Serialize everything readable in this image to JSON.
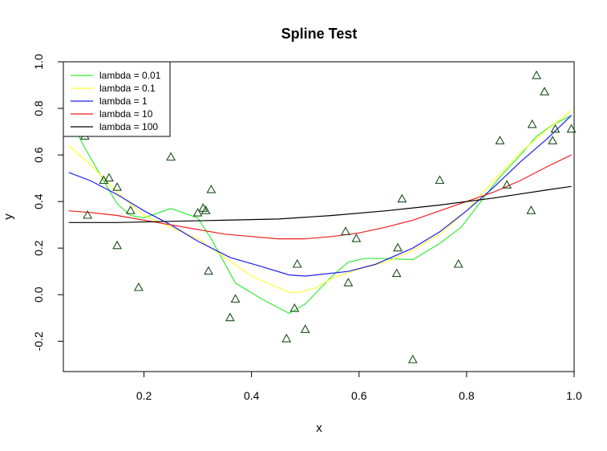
{
  "chart_data": {
    "type": "scatter",
    "title": "Spline Test",
    "xlabel": "x",
    "ylabel": "y",
    "xlim": [
      0.05,
      1.0
    ],
    "ylim": [
      -0.33,
      1.0
    ],
    "x_ticks": [
      0.2,
      0.4,
      0.6,
      0.8,
      1.0
    ],
    "x_tick_labels": [
      "0.2",
      "0.4",
      "0.6",
      "0.8",
      "1.0"
    ],
    "y_ticks": [
      -0.2,
      0.0,
      0.2,
      0.4,
      0.6,
      0.8,
      1.0
    ],
    "y_tick_labels": [
      "-0.2",
      "0.0",
      "0.2",
      "0.4",
      "0.6",
      "0.8",
      "1.0"
    ],
    "grid": false,
    "legend_position": "top-left",
    "points": {
      "marker": "triangle",
      "color": "#1a4d1a",
      "x": [
        0.09,
        0.095,
        0.11,
        0.125,
        0.135,
        0.15,
        0.15,
        0.175,
        0.19,
        0.25,
        0.3,
        0.31,
        0.315,
        0.32,
        0.325,
        0.36,
        0.37,
        0.465,
        0.48,
        0.485,
        0.5,
        0.575,
        0.58,
        0.595,
        0.67,
        0.672,
        0.68,
        0.7,
        0.75,
        0.785,
        0.862,
        0.875,
        0.92,
        0.922,
        0.93,
        0.945,
        0.96,
        0.965,
        0.995
      ],
      "y": [
        0.68,
        0.34,
        0.7,
        0.49,
        0.5,
        0.46,
        0.21,
        0.36,
        0.03,
        0.59,
        0.35,
        0.37,
        0.36,
        0.1,
        0.45,
        -0.1,
        -0.02,
        -0.19,
        -0.06,
        0.13,
        -0.15,
        0.27,
        0.05,
        0.24,
        0.09,
        0.2,
        0.41,
        -0.28,
        0.49,
        0.13,
        0.66,
        0.47,
        0.36,
        0.73,
        0.94,
        0.87,
        0.66,
        0.71,
        0.71
      ]
    },
    "series": [
      {
        "name": "lambda = 0.01",
        "color": "#33ee33",
        "x": [
          0.07,
          0.09,
          0.11,
          0.13,
          0.15,
          0.175,
          0.2,
          0.25,
          0.3,
          0.325,
          0.37,
          0.42,
          0.47,
          0.5,
          0.55,
          0.58,
          0.61,
          0.65,
          0.7,
          0.75,
          0.79,
          0.82,
          0.86,
          0.9,
          0.93,
          0.96,
          0.995
        ],
        "y": [
          0.72,
          0.63,
          0.55,
          0.47,
          0.39,
          0.34,
          0.33,
          0.37,
          0.33,
          0.24,
          0.05,
          -0.02,
          -0.08,
          -0.04,
          0.08,
          0.14,
          0.155,
          0.155,
          0.15,
          0.22,
          0.29,
          0.38,
          0.5,
          0.6,
          0.68,
          0.73,
          0.77
        ]
      },
      {
        "name": "lambda = 0.1",
        "color": "#ffff33",
        "x": [
          0.06,
          0.1,
          0.15,
          0.2,
          0.25,
          0.3,
          0.35,
          0.4,
          0.45,
          0.47,
          0.49,
          0.52,
          0.55,
          0.6,
          0.65,
          0.7,
          0.75,
          0.8,
          0.85,
          0.9,
          0.95,
          0.995
        ],
        "y": [
          0.64,
          0.56,
          0.44,
          0.34,
          0.29,
          0.24,
          0.16,
          0.08,
          0.03,
          0.01,
          0.01,
          0.03,
          0.07,
          0.11,
          0.14,
          0.19,
          0.26,
          0.36,
          0.49,
          0.61,
          0.71,
          0.79
        ]
      },
      {
        "name": "lambda = 1",
        "color": "#1f1fee",
        "x": [
          0.06,
          0.1,
          0.15,
          0.2,
          0.25,
          0.3,
          0.36,
          0.42,
          0.47,
          0.5,
          0.54,
          0.58,
          0.63,
          0.7,
          0.75,
          0.8,
          0.85,
          0.9,
          0.95,
          0.995
        ],
        "y": [
          0.525,
          0.49,
          0.43,
          0.36,
          0.3,
          0.23,
          0.16,
          0.12,
          0.085,
          0.08,
          0.09,
          0.1,
          0.13,
          0.2,
          0.27,
          0.36,
          0.46,
          0.57,
          0.67,
          0.77
        ]
      },
      {
        "name": "lambda = 10",
        "color": "#ee1f1f",
        "x": [
          0.06,
          0.1,
          0.15,
          0.2,
          0.25,
          0.3,
          0.35,
          0.4,
          0.45,
          0.5,
          0.55,
          0.6,
          0.65,
          0.7,
          0.75,
          0.8,
          0.85,
          0.9,
          0.95,
          0.995
        ],
        "y": [
          0.36,
          0.353,
          0.34,
          0.32,
          0.3,
          0.28,
          0.26,
          0.25,
          0.24,
          0.24,
          0.25,
          0.265,
          0.29,
          0.32,
          0.36,
          0.4,
          0.44,
          0.49,
          0.55,
          0.6
        ]
      },
      {
        "name": "lambda = 100",
        "color": "#000000",
        "x": [
          0.06,
          0.15,
          0.25,
          0.35,
          0.45,
          0.55,
          0.65,
          0.75,
          0.85,
          0.95,
          0.995
        ],
        "y": [
          0.31,
          0.31,
          0.315,
          0.32,
          0.325,
          0.34,
          0.36,
          0.385,
          0.415,
          0.45,
          0.465
        ]
      }
    ]
  }
}
